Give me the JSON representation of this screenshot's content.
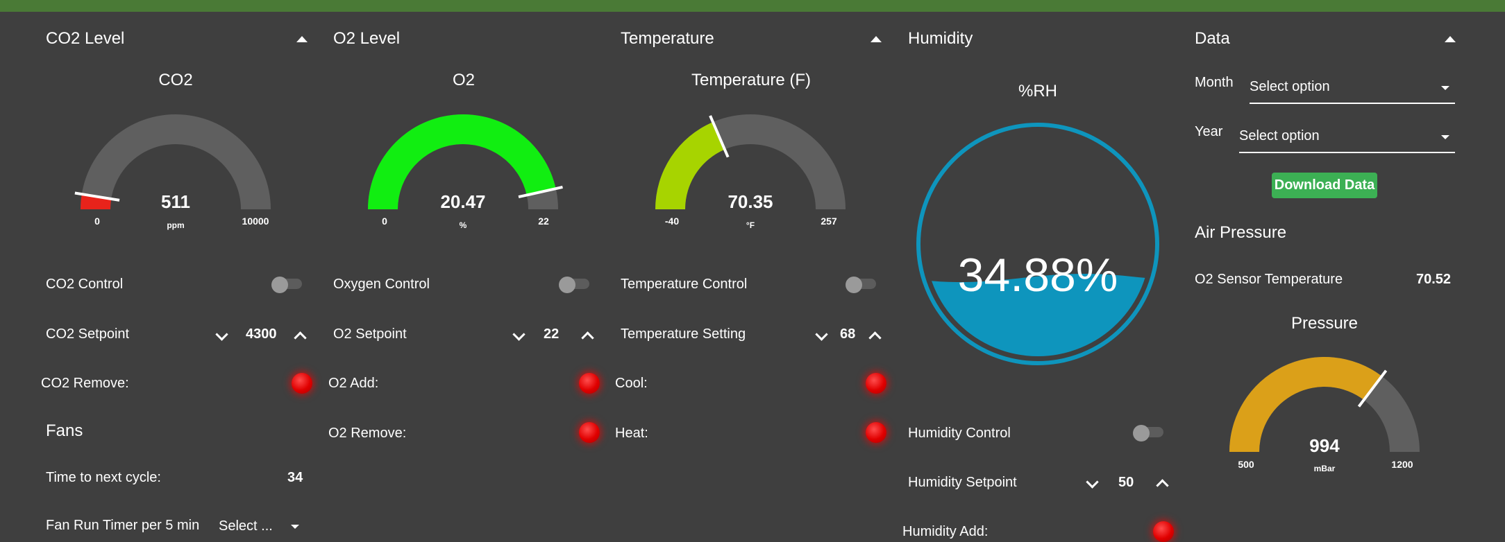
{
  "theme": {
    "background": "#3f3f3f",
    "topbar": "#4a7a36",
    "led_red": "#ff0000",
    "download_green": "#3cb054"
  },
  "co2": {
    "section_title": "CO2 Level",
    "gauge": {
      "title": "CO2",
      "value": "511",
      "unit": "ppm",
      "min": "0",
      "max": "10000",
      "fill_fraction": 0.0511,
      "color": "#e8231b"
    },
    "control_label": "CO2 Control",
    "setpoint_label": "CO2 Setpoint",
    "setpoint_value": "4300",
    "remove_label": "CO2 Remove:"
  },
  "o2": {
    "section_title": "O2 Level",
    "gauge": {
      "title": "O2",
      "value": "20.47",
      "unit": "%",
      "min": "0",
      "max": "22",
      "fill_fraction": 0.93,
      "color": "#11ee11"
    },
    "control_label": "Oxygen Control",
    "setpoint_label": "O2 Setpoint",
    "setpoint_value": "22",
    "add_label": "O2 Add:",
    "remove_label": "O2 Remove:"
  },
  "temperature": {
    "section_title": "Temperature",
    "gauge": {
      "title": "Temperature (F)",
      "value": "70.35",
      "unit": "°F",
      "min": "-40",
      "max": "257",
      "fill_fraction": 0.371,
      "color": "#a7d400"
    },
    "control_label": "Temperature Control",
    "setpoint_label": "Temperature Setting",
    "setpoint_value": "68",
    "cool_label": "Cool:",
    "heat_label": "Heat:"
  },
  "humidity": {
    "section_title": "Humidity",
    "gauge_title": "%RH",
    "value_text": "34.88%",
    "level_fraction": 0.3488,
    "color": "#0e95bd",
    "control_label": "Humidity Control",
    "setpoint_label": "Humidity Setpoint",
    "setpoint_value": "50",
    "add_label": "Humidity Add:"
  },
  "fans": {
    "section_title": "Fans",
    "next_cycle_label": "Time to next cycle:",
    "next_cycle_value": "34",
    "run_timer_label": "Fan Run Timer per 5 min",
    "run_timer_select": "Select ..."
  },
  "data_panel": {
    "section_title": "Data",
    "month_label": "Month",
    "month_select": "Select option",
    "year_label": "Year",
    "year_select": "Select option",
    "download_label": "Download Data"
  },
  "air_pressure": {
    "section_title": "Air Pressure",
    "sensor_temp_label": "O2 Sensor Temperature",
    "sensor_temp_value": "70.52",
    "gauge": {
      "title": "Pressure",
      "value": "994",
      "unit": "mBar",
      "min": "500",
      "max": "1200",
      "fill_fraction": 0.706,
      "color": "#dba019"
    }
  },
  "icons": [
    "collapse-caret-icon",
    "chevron-down-icon",
    "chevron-up-icon",
    "dropdown-arrow-icon",
    "status-led-icon"
  ]
}
